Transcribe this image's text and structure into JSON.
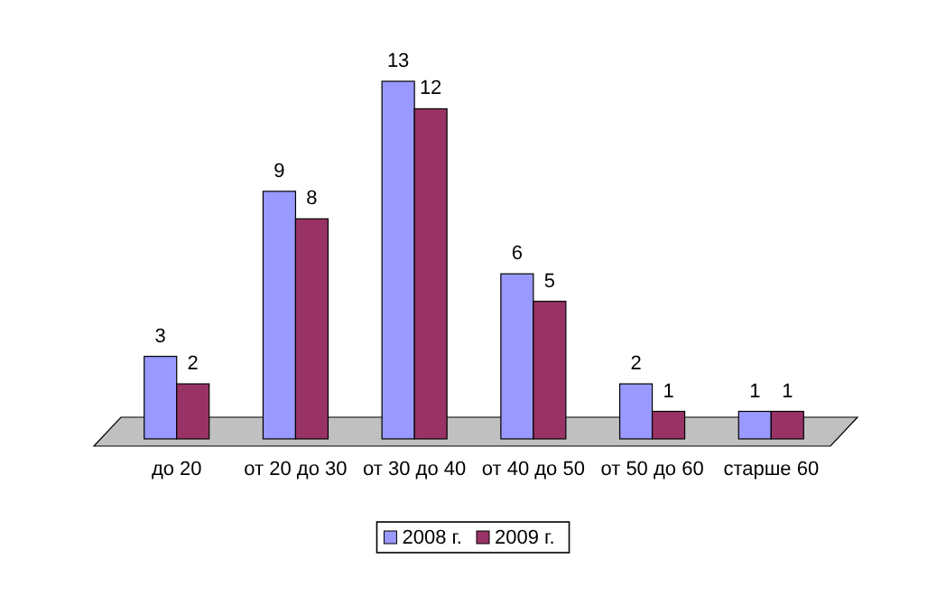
{
  "chart_data": {
    "type": "bar",
    "categories": [
      "до 20",
      "от 20 до 30",
      "от 30 до 40",
      "от 40 до 50",
      "от 50 до 60",
      "старше 60"
    ],
    "series": [
      {
        "name": "2008 г.",
        "color": "#9999ff",
        "values": [
          3,
          9,
          13,
          6,
          2,
          1
        ]
      },
      {
        "name": "2009 г.",
        "color": "#993366",
        "values": [
          2,
          8,
          12,
          5,
          1,
          1
        ]
      }
    ],
    "data_labels": true,
    "legend": "bottom",
    "grid": false
  }
}
